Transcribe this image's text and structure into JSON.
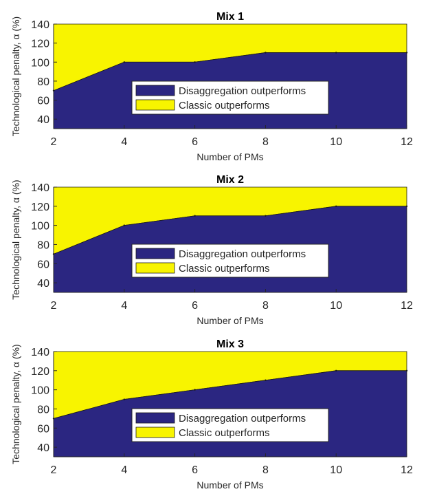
{
  "colors": {
    "disaggregation": "#2B2681",
    "classic": "#F8F400",
    "axis": "#262626",
    "edge": "#1a1a1a"
  },
  "chart_data": [
    {
      "type": "area",
      "title": "Mix 1",
      "xlabel": "Number of PMs",
      "ylabel": "Technological penalty, α (%)",
      "xlim": [
        2,
        12
      ],
      "ylim": [
        30,
        140
      ],
      "xticks": [
        2,
        4,
        6,
        8,
        10,
        12
      ],
      "yticks": [
        40,
        60,
        80,
        100,
        120,
        140
      ],
      "x": [
        2,
        4,
        6,
        8,
        10,
        12
      ],
      "series": [
        {
          "name": "Disaggregation outperforms",
          "values": [
            70,
            100,
            100,
            110,
            110,
            110
          ]
        },
        {
          "name": "Classic outperforms",
          "values": [
            140,
            140,
            140,
            140,
            140,
            140
          ]
        }
      ],
      "legend": "center"
    },
    {
      "type": "area",
      "title": "Mix 2",
      "xlabel": "Number of PMs",
      "ylabel": "Technological penalty, α (%)",
      "xlim": [
        2,
        12
      ],
      "ylim": [
        30,
        140
      ],
      "xticks": [
        2,
        4,
        6,
        8,
        10,
        12
      ],
      "yticks": [
        40,
        60,
        80,
        100,
        120,
        140
      ],
      "x": [
        2,
        4,
        6,
        8,
        10,
        12
      ],
      "series": [
        {
          "name": "Disaggregation outperforms",
          "values": [
            70,
            100,
            110,
            110,
            120,
            120
          ]
        },
        {
          "name": "Classic outperforms",
          "values": [
            140,
            140,
            140,
            140,
            140,
            140
          ]
        }
      ],
      "legend": "center"
    },
    {
      "type": "area",
      "title": "Mix 3",
      "xlabel": "Number of PMs",
      "ylabel": "Technological penalty, α (%)",
      "xlim": [
        2,
        12
      ],
      "ylim": [
        30,
        140
      ],
      "xticks": [
        2,
        4,
        6,
        8,
        10,
        12
      ],
      "yticks": [
        40,
        60,
        80,
        100,
        120,
        140
      ],
      "x": [
        2,
        4,
        6,
        8,
        10,
        12
      ],
      "series": [
        {
          "name": "Disaggregation outperforms",
          "values": [
            70,
            90,
            100,
            110,
            120,
            120
          ]
        },
        {
          "name": "Classic outperforms",
          "values": [
            140,
            140,
            140,
            140,
            140,
            140
          ]
        }
      ],
      "legend": "center"
    }
  ]
}
